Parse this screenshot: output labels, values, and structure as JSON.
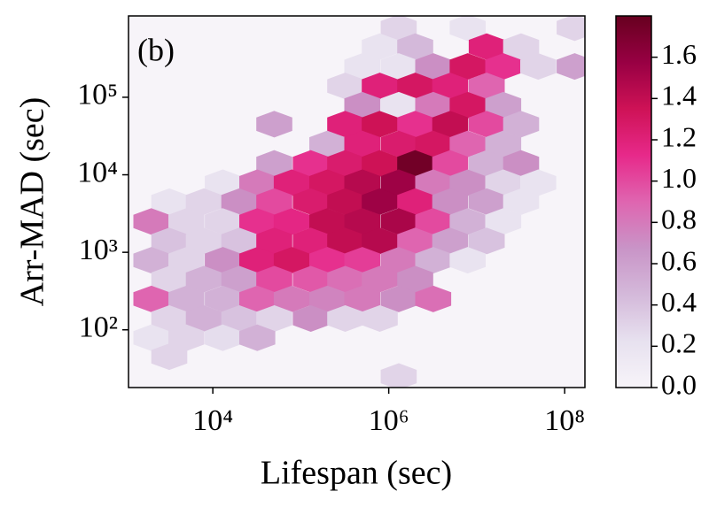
{
  "chart_data": {
    "type": "hexbin",
    "annotation": "(b)",
    "xlabel": "Lifespan (sec)",
    "ylabel": "Arr-MAD (sec)",
    "xscale": "log",
    "yscale": "log",
    "xlim": [
      1100,
      170000000
    ],
    "ylim": [
      18,
      1120000
    ],
    "xticks": [
      {
        "value": 10000,
        "label": "10⁴"
      },
      {
        "value": 1000000,
        "label": "10⁶"
      },
      {
        "value": 100000000,
        "label": "10⁸"
      }
    ],
    "yticks": [
      {
        "value": 100,
        "label": "10²"
      },
      {
        "value": 1000,
        "label": "10³"
      },
      {
        "value": 10000,
        "label": "10⁴"
      },
      {
        "value": 100000,
        "label": "10⁵"
      }
    ],
    "colormap": [
      "#f7f4f9",
      "#e7e1ef",
      "#d4b9da",
      "#c994c7",
      "#df65b0",
      "#e7298a",
      "#ce1256",
      "#980043",
      "#67001f"
    ],
    "clim": [
      0,
      1.8
    ],
    "cticks": [
      {
        "value": 0,
        "label": "0.0"
      },
      {
        "value": 0.2,
        "label": "0.2"
      },
      {
        "value": 0.4,
        "label": "0.4"
      },
      {
        "value": 0.6,
        "label": "0.6"
      },
      {
        "value": 0.8,
        "label": "0.8"
      },
      {
        "value": 1,
        "label": "1.0"
      },
      {
        "value": 1.2,
        "label": "1.2"
      },
      {
        "value": 1.4,
        "label": "1.4"
      },
      {
        "value": 1.6,
        "label": "1.6"
      }
    ],
    "x": [
      1300000.0,
      7900000.0,
      130000000.0,
      790000.0,
      2000000.0,
      13000000.0,
      32000000.0,
      500000.0,
      1300000.0,
      3200000.0,
      7900000.0,
      20000000.0,
      50000000.0,
      130000000.0,
      320000.0,
      790000.0,
      2000000.0,
      5000000.0,
      13000000.0,
      500000.0,
      1300000.0,
      3200000.0,
      7900000.0,
      20000000.0,
      50000.0,
      320000.0,
      790000.0,
      2000000.0,
      5000000.0,
      13000000.0,
      32000000.0,
      200000.0,
      500000.0,
      1300000.0,
      3200000.0,
      7900000.0,
      20000000.0,
      50000.0,
      130000.0,
      320000.0,
      790000.0,
      2000000.0,
      5000000.0,
      13000000.0,
      32000000.0,
      13000.0,
      32000.0,
      79000.0,
      200000.0,
      500000.0,
      1300000.0,
      3200000.0,
      7900000.0,
      20000000.0,
      50000000.0,
      3200.0,
      7900.0,
      20000.0,
      50000.0,
      130000.0,
      320000.0,
      790000.0,
      2000000.0,
      5000000.0,
      13000000.0,
      32000000.0,
      2000.0,
      5000.0,
      13000.0,
      32000.0,
      79000.0,
      200000.0,
      500000.0,
      1300000.0,
      3200000.0,
      7900000.0,
      20000000.0,
      3200.0,
      7900.0,
      20000.0,
      50000.0,
      130000.0,
      320000.0,
      790000.0,
      2000000.0,
      5000000.0,
      13000000.0,
      2000.0,
      5000.0,
      13000.0,
      32000.0,
      79000.0,
      200000.0,
      500000.0,
      1300000.0,
      3200000.0,
      7900000.0,
      3200.0,
      7900.0,
      20000.0,
      50000.0,
      130000.0,
      320000.0,
      790000.0,
      2000000.0,
      2000.0,
      5000.0,
      13000.0,
      32000.0,
      79000.0,
      200000.0,
      500000.0,
      1300000.0,
      3200000.0,
      3200.0,
      7900.0,
      20000.0,
      50000.0,
      130000.0,
      320000.0,
      790000.0,
      2000.0,
      5000.0,
      13000.0,
      32000.0,
      3200.0,
      1300000.0
    ],
    "y": [
      790000.0,
      790000.0,
      790000.0,
      450000.0,
      450000.0,
      450000.0,
      450000.0,
      250000.0,
      250000.0,
      250000.0,
      250000.0,
      250000.0,
      250000.0,
      250000.0,
      140000.0,
      140000.0,
      140000.0,
      140000.0,
      140000.0,
      79000.0,
      79000.0,
      79000.0,
      79000.0,
      79000.0,
      45000.0,
      45000.0,
      45000.0,
      45000.0,
      45000.0,
      45000.0,
      45000.0,
      25000.0,
      25000.0,
      25000.0,
      25000.0,
      25000.0,
      25000.0,
      14000.0,
      14000.0,
      14000.0,
      14000.0,
      14000.0,
      14000.0,
      14000.0,
      14000.0,
      7900,
      7900,
      7900,
      7900,
      7900,
      7900,
      7900,
      7900,
      7900,
      7900,
      4500,
      4500,
      4500,
      4500,
      4500,
      4500,
      4500,
      4500,
      4500,
      4500,
      4500,
      2500,
      2500,
      2500,
      2500,
      2500,
      2500,
      2500,
      2500,
      2500,
      2500,
      2500,
      1400,
      1400,
      1400,
      1400,
      1400,
      1400,
      1400,
      1400,
      1400,
      1400,
      790,
      790,
      790,
      790,
      790,
      790,
      790,
      790,
      790,
      790,
      450,
      450,
      450,
      450,
      450,
      450,
      450,
      450,
      250,
      250,
      250,
      250,
      250,
      250,
      250,
      250,
      250,
      140,
      140,
      140,
      140,
      140,
      140,
      140,
      79,
      79,
      79,
      79,
      45,
      25
    ],
    "values": [
      0.3,
      0.2,
      0.3,
      0.2,
      0.45,
      1.2,
      0.3,
      0.2,
      0.2,
      0.7,
      1.3,
      1.1,
      0.3,
      0.6,
      0.3,
      1.2,
      1.3,
      1.2,
      0.9,
      0.7,
      0.2,
      0.8,
      1.3,
      0.6,
      0.6,
      1.2,
      1.35,
      1.1,
      1.4,
      1.0,
      0.5,
      0.5,
      1.2,
      1.25,
      1.3,
      0.9,
      0.5,
      0.6,
      1.1,
      1.25,
      1.35,
      1.75,
      1.0,
      0.5,
      0.7,
      0.2,
      0.8,
      1.2,
      1.3,
      1.45,
      1.55,
      0.8,
      0.7,
      0.3,
      0.2,
      0.2,
      0.3,
      0.7,
      1.0,
      1.25,
      1.4,
      1.55,
      1.2,
      0.7,
      0.6,
      0.2,
      0.8,
      0.3,
      0.3,
      1.1,
      1.15,
      1.4,
      1.45,
      1.5,
      1.0,
      0.5,
      0.2,
      0.4,
      0.3,
      0.4,
      1.2,
      1.2,
      1.4,
      1.45,
      0.9,
      0.6,
      0.4,
      0.5,
      0.3,
      0.7,
      1.2,
      1.3,
      1.1,
      1.05,
      0.8,
      0.5,
      0.2,
      0.3,
      0.5,
      0.6,
      1.0,
      0.95,
      0.85,
      0.8,
      0.7,
      0.9,
      0.5,
      0.5,
      0.9,
      0.8,
      0.75,
      0.8,
      0.7,
      0.85,
      0.3,
      0.5,
      0.4,
      0.3,
      0.7,
      0.3,
      0.3,
      0.2,
      0.3,
      0.25,
      0.5,
      0.3,
      0.3
    ]
  }
}
